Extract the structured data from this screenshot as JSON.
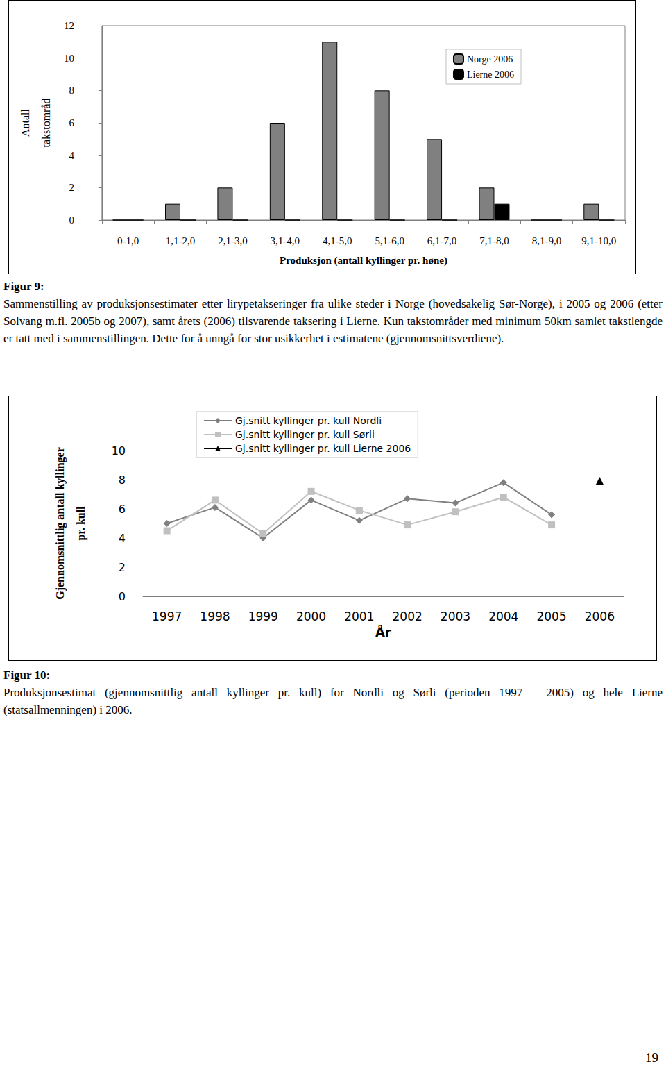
{
  "chart_data": [
    {
      "type": "bar",
      "x_label": "Produksjon (antall kyllinger pr. høne)",
      "y_label": "Antall\ntakstområd",
      "categories": [
        "0-1,0",
        "1,1-2,0",
        "2,1-3,0",
        "3,1-4,0",
        "4,1-5,0",
        "5,1-6,0",
        "6,1-7,0",
        "7,1-8,0",
        "8,1-9,0",
        "9,1-10,0"
      ],
      "series": [
        {
          "name": "Norge 2006",
          "color": "#808080",
          "values": [
            0,
            1,
            2,
            6,
            11,
            8,
            5,
            2,
            0,
            1
          ]
        },
        {
          "name": "Lierne 2006",
          "color": "#000000",
          "values": [
            0,
            0,
            0,
            0,
            0,
            0,
            0,
            1,
            0,
            0
          ]
        }
      ],
      "ylim": [
        0,
        12
      ],
      "yticks": [
        0,
        2,
        4,
        6,
        8,
        10,
        12
      ],
      "grid": false,
      "legend": "upper right"
    },
    {
      "type": "line",
      "x_label": "År",
      "y_label": "Gjennomsnittlig antall kyllinger\npr. kull",
      "categories": [
        "1997",
        "1998",
        "1999",
        "2000",
        "2001",
        "2002",
        "2003",
        "2004",
        "2005",
        "2006"
      ],
      "series": [
        {
          "name": "Gj.snitt kyllinger pr. kull Nordli",
          "color": "#808080",
          "marker": "diamond",
          "line_style": "solid",
          "values": [
            5.0,
            6.1,
            4.0,
            6.6,
            5.2,
            6.7,
            6.4,
            7.8,
            5.6,
            null
          ]
        },
        {
          "name": "Gj.snitt kyllinger pr. kull Sørli",
          "color": "#c0c0c0",
          "marker": "square",
          "line_style": "solid",
          "values": [
            4.5,
            6.6,
            4.3,
            7.2,
            5.9,
            4.9,
            5.8,
            6.8,
            4.9,
            null
          ]
        },
        {
          "name": "Gj.snitt kyllinger pr. kull Lierne 2006",
          "color": "#000000",
          "marker": "triangle",
          "line_style": "solid",
          "values": [
            null,
            null,
            null,
            null,
            null,
            null,
            null,
            null,
            null,
            7.9
          ]
        }
      ],
      "ylim": [
        0,
        10
      ],
      "yticks": [
        0,
        2,
        4,
        6,
        8,
        10
      ],
      "grid": false,
      "legend": "upper center"
    }
  ],
  "captions": [
    {
      "label": "Figur 9:",
      "text": "Sammenstilling av produksjonsestimater etter lirypetakseringer fra ulike steder i Norge (hovedsakelig Sør-Norge), i 2005 og 2006 (etter Solvang m.fl. 2005b og 2007), samt årets (2006) tilsvarende taksering i Lierne. Kun takstområder med minimum 50km samlet takstlengde er tatt med i sammenstillingen. Dette for å unngå for stor usikkerhet i estimatene (gjennomsnittsverdiene)."
    },
    {
      "label": "Figur 10:",
      "text": "Produksjonsestimat (gjennomsnittlig antall kyllinger pr. kull) for Nordli og Sørli (perioden 1997 – 2005) og hele Lierne (statsallmenningen) i 2006."
    }
  ],
  "page_number": "19"
}
